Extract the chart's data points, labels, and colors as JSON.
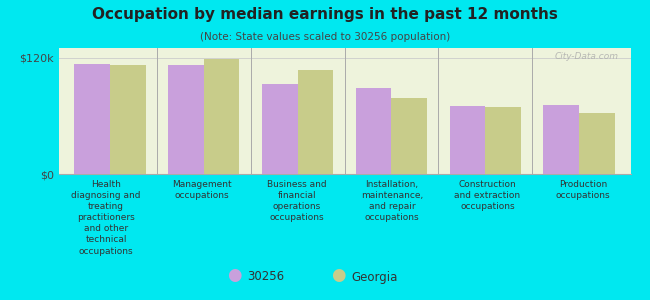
{
  "title": "Occupation by median earnings in the past 12 months",
  "subtitle": "(Note: State values scaled to 30256 population)",
  "categories": [
    "Health\ndiagnosing and\ntreating\npractitioners\nand other\ntechnical\noccupations",
    "Management\noccupations",
    "Business and\nfinancial\noperations\noccupations",
    "Installation,\nmaintenance,\nand repair\noccupations",
    "Construction\nand extraction\noccupations",
    "Production\noccupations"
  ],
  "values_30256": [
    113000,
    112000,
    93000,
    89000,
    70000,
    71000
  ],
  "values_georgia": [
    112000,
    119000,
    107000,
    78000,
    69000,
    63000
  ],
  "bar_color_30256": "#c9a0dc",
  "bar_color_georgia": "#c8cc8a",
  "background_color": "#00e8f0",
  "plot_bg_color": "#eef3dc",
  "ylim": [
    0,
    130000
  ],
  "ytick_labels": [
    "$0",
    "$120k"
  ],
  "legend_label_30256": "30256",
  "legend_label_georgia": "Georgia",
  "watermark": "City-Data.com"
}
